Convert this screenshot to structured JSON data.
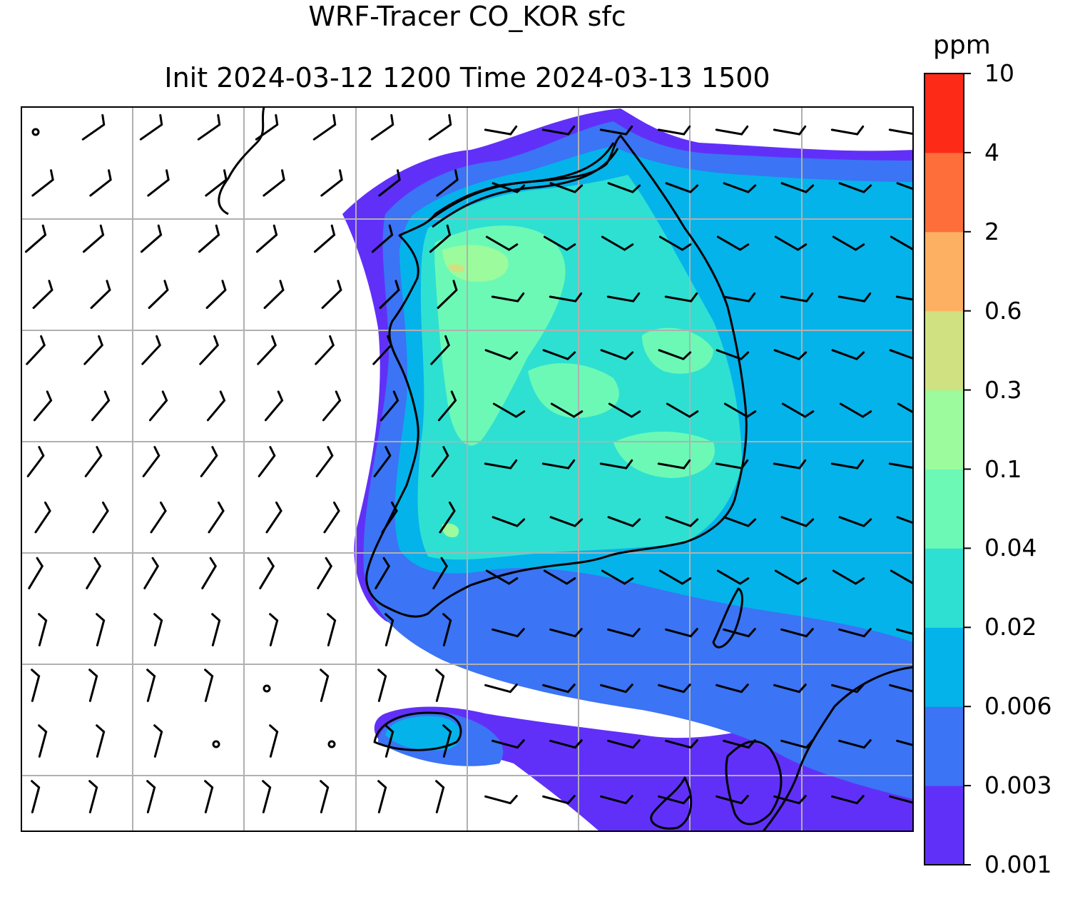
{
  "title": {
    "line1": "WRF-Tracer CO_KOR sfc",
    "line2": "Init 2024-03-12 1200 Time 2024-03-13 1500"
  },
  "colorbar": {
    "unit": "ppm",
    "levels": [
      "0.001",
      "0.003",
      "0.006",
      "0.02",
      "0.04",
      "0.1",
      "0.3",
      "0.6",
      "2",
      "4",
      "10"
    ],
    "colors": [
      "#6130f8",
      "#3b74f4",
      "#04b3ea",
      "#2ee0d2",
      "#6cf9b6",
      "#9cfb9c",
      "#cfe181",
      "#fdb062",
      "#fd6e3b",
      "#fd2a17"
    ]
  },
  "map": {
    "land_outline_color": "#000000",
    "grid_color": "#b0b0b0"
  }
}
